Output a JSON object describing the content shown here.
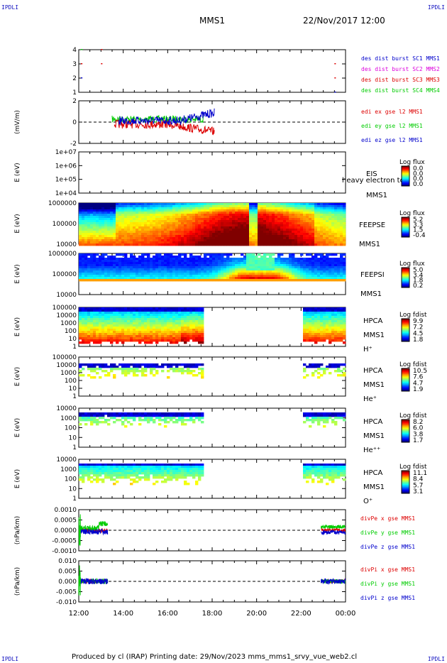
{
  "header": {
    "corner_label": "IPDLI",
    "title": "MMS1",
    "date": "22/Nov/2017 12:00"
  },
  "footer": {
    "text": "Produced by cl (IRAP)   Printing date: 29/Nov/2023   mms_mms1_srvy_vue_web2.cl"
  },
  "chart_data": {
    "type": "line",
    "x_axis": {
      "tick_labels": [
        "12:00",
        "14:00",
        "16:00",
        "18:00",
        "20:00",
        "22:00",
        "00:00"
      ],
      "range_hours": [
        12,
        24
      ]
    },
    "colors": {
      "red": "#dd0000",
      "green": "#00cc00",
      "blue": "#0000cc",
      "magenta": "#dd00dd",
      "dash": "#000000"
    },
    "panels": [
      {
        "id": "burst",
        "yticks": [
          "1",
          "2",
          "3",
          "4"
        ],
        "legend": [
          {
            "text": "des dist burst SC1 MMS1",
            "color": "#0000cc"
          },
          {
            "text": "des dist burst SC2 MMS2",
            "color": "#dd00dd"
          },
          {
            "text": "des dist burst SC3 MMS3",
            "color": "#dd0000"
          },
          {
            "text": "des dist burst SC4 MMS4",
            "color": "#00cc00"
          }
        ]
      },
      {
        "id": "edi",
        "ylabel": "(mV/m)",
        "yticks": [
          "-2",
          "0",
          "2"
        ],
        "legend": [
          {
            "text": "edi ex gse l2 MMS1",
            "color": "#dd0000"
          },
          {
            "text": "edi ey gse l2 MMS1",
            "color": "#00cc00"
          },
          {
            "text": "edi ez gse l2 MMS1",
            "color": "#0000cc"
          }
        ]
      },
      {
        "id": "eis",
        "ylabel": "E (eV)",
        "yticks": [
          "1e+04",
          "1e+05",
          "1e+06",
          "1e+07"
        ],
        "side_labels": [
          "EIS",
          "MMS1"
        ],
        "extra_text": "heavy electron to",
        "colorbar": {
          "title": "Log flux",
          "ticks": [
            "0.0",
            "0.0",
            "0.0",
            "0.0"
          ]
        }
      },
      {
        "id": "feepse",
        "ylabel": "E (eV)",
        "yticks": [
          "10000",
          "100000",
          "1000000"
        ],
        "side_labels": [
          "FEEPSE",
          "MMS1"
        ],
        "colorbar": {
          "title": "Log flux",
          "ticks": [
            "5.2",
            "3.3",
            "1.5",
            "-0.4"
          ]
        }
      },
      {
        "id": "feepsi",
        "ylabel": "E (eV)",
        "yticks": [
          "10000",
          "100000",
          "1000000"
        ],
        "side_labels": [
          "FEEPSI",
          "MMS1"
        ],
        "colorbar": {
          "title": "Log flux",
          "ticks": [
            "5.0",
            "3.4",
            "1.8",
            "0.2"
          ]
        }
      },
      {
        "id": "hpca_h",
        "ylabel": "E (eV)",
        "yticks": [
          "1",
          "10",
          "100",
          "1000",
          "10000",
          "100000"
        ],
        "side_labels": [
          "HPCA",
          "MMS1",
          "H⁺"
        ],
        "colorbar": {
          "title": "Log fdist",
          "ticks": [
            "9.9",
            "7.2",
            "4.5",
            "1.8"
          ]
        }
      },
      {
        "id": "hpca_he",
        "ylabel": "E (eV)",
        "yticks": [
          "1",
          "10",
          "100",
          "1000",
          "10000",
          "100000"
        ],
        "side_labels": [
          "HPCA",
          "MMS1",
          "He⁺"
        ],
        "colorbar": {
          "title": "Log fdist",
          "ticks": [
            "10.5",
            "7.6",
            "4.7",
            "1.9"
          ]
        }
      },
      {
        "id": "hpca_he2",
        "ylabel": "E (eV)",
        "yticks": [
          "1",
          "10",
          "100",
          "1000",
          "10000"
        ],
        "side_labels": [
          "HPCA",
          "MMS1",
          "He⁺⁺"
        ],
        "colorbar": {
          "title": "Log fdist",
          "ticks": [
            "8.2",
            "6.0",
            "3.8",
            "1.7"
          ]
        }
      },
      {
        "id": "hpca_o",
        "ylabel": "E (eV)",
        "yticks": [
          "1",
          "10",
          "100",
          "1000",
          "10000"
        ],
        "side_labels": [
          "HPCA",
          "MMS1",
          "O⁺"
        ],
        "colorbar": {
          "title": "Log fdist",
          "ticks": [
            "11.1",
            "8.4",
            "5.7",
            "3.1"
          ]
        }
      },
      {
        "id": "divpe",
        "ylabel": "(nPa/km)",
        "yticks": [
          "-0.0010",
          "-0.0005",
          "0.0000",
          "0.0005",
          "0.0010"
        ],
        "legend": [
          {
            "text": "divPe x gse MMS1",
            "color": "#dd0000"
          },
          {
            "text": "divPe y gse MMS1",
            "color": "#00cc00"
          },
          {
            "text": "divPe z gse MMS1",
            "color": "#0000cc"
          }
        ]
      },
      {
        "id": "divpi",
        "ylabel": "(nPa/km)",
        "yticks": [
          "-0.010",
          "-0.005",
          "0.000",
          "0.005",
          "0.010"
        ],
        "legend": [
          {
            "text": "divPi x gse MMS1",
            "color": "#dd0000"
          },
          {
            "text": "divPi y gse MMS1",
            "color": "#00cc00"
          },
          {
            "text": "divPi z gse MMS1",
            "color": "#0000cc"
          }
        ]
      }
    ]
  }
}
